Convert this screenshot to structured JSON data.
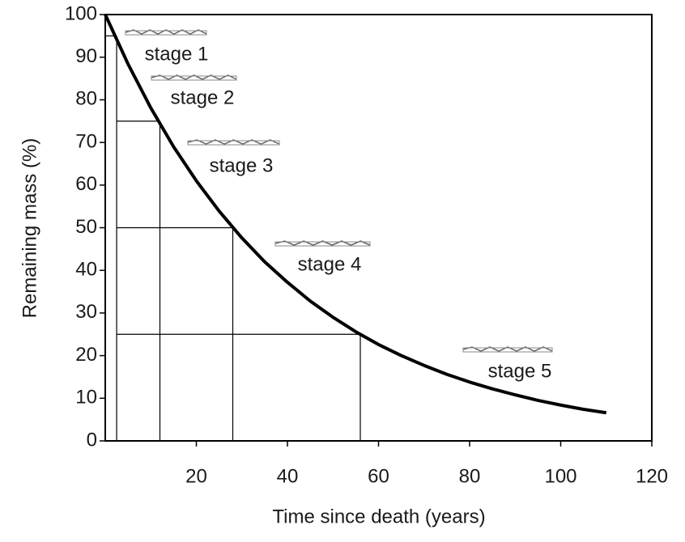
{
  "chart_data": {
    "type": "line",
    "x_label": "Time since death (years)",
    "y_label": "Remaining mass (%)",
    "xlim": [
      0,
      120
    ],
    "xticks": [
      20,
      40,
      60,
      80,
      100,
      120
    ],
    "ylim": [
      0,
      100
    ],
    "yticks": [
      0,
      10,
      20,
      30,
      40,
      50,
      60,
      70,
      80,
      90,
      100
    ],
    "x": [
      0,
      5,
      10,
      15,
      20,
      25,
      30,
      35,
      40,
      45,
      50,
      55,
      60,
      65,
      70,
      75,
      80,
      85,
      90,
      95,
      100,
      105,
      110
    ],
    "series": [
      {
        "color": "#000000",
        "values": [
          100,
          88.4,
          78.1,
          69.0,
          61.0,
          53.9,
          47.6,
          42.0,
          37.2,
          32.8,
          29.0,
          25.6,
          22.6,
          20.0,
          17.7,
          15.6,
          13.8,
          12.2,
          10.8,
          9.5,
          8.4,
          7.4,
          6.6
        ]
      }
    ],
    "guides": [
      {
        "x": 2.5,
        "y": 95
      },
      {
        "x": 12,
        "y": 75
      },
      {
        "x": 28,
        "y": 50
      },
      {
        "x": 56,
        "y": 25
      }
    ],
    "annotations": [
      "stage 1",
      "stage 2",
      "stage 3",
      "stage 4",
      "stage 5"
    ]
  }
}
